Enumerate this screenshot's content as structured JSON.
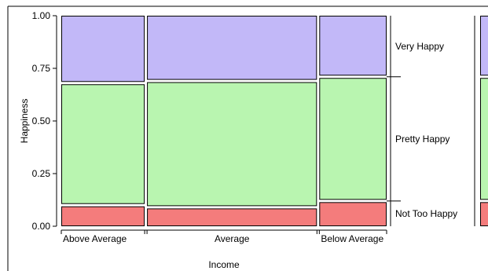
{
  "chart_data": {
    "type": "mosaic",
    "title": "",
    "xlabel": "Income",
    "ylabel": "Happiness",
    "ylim": [
      0,
      1
    ],
    "yticks": [
      "0.00",
      "0.25",
      "0.50",
      "0.75",
      "1.00"
    ],
    "categories": [
      "Above Average",
      "Average",
      "Below Average"
    ],
    "widths": [
      0.26,
      0.53,
      0.21
    ],
    "series": [
      {
        "name": "Not Too Happy",
        "values": [
          0.1,
          0.09,
          0.12
        ]
      },
      {
        "name": "Pretty Happy",
        "values": [
          0.58,
          0.6,
          0.59
        ]
      },
      {
        "name": "Very Happy",
        "values": [
          0.32,
          0.31,
          0.29
        ]
      }
    ],
    "colors": {
      "Not Too Happy": "#f47c7c",
      "Pretty Happy": "#b9f5b0",
      "Very Happy": "#c2b8f8"
    },
    "series_label_placement": "right"
  }
}
